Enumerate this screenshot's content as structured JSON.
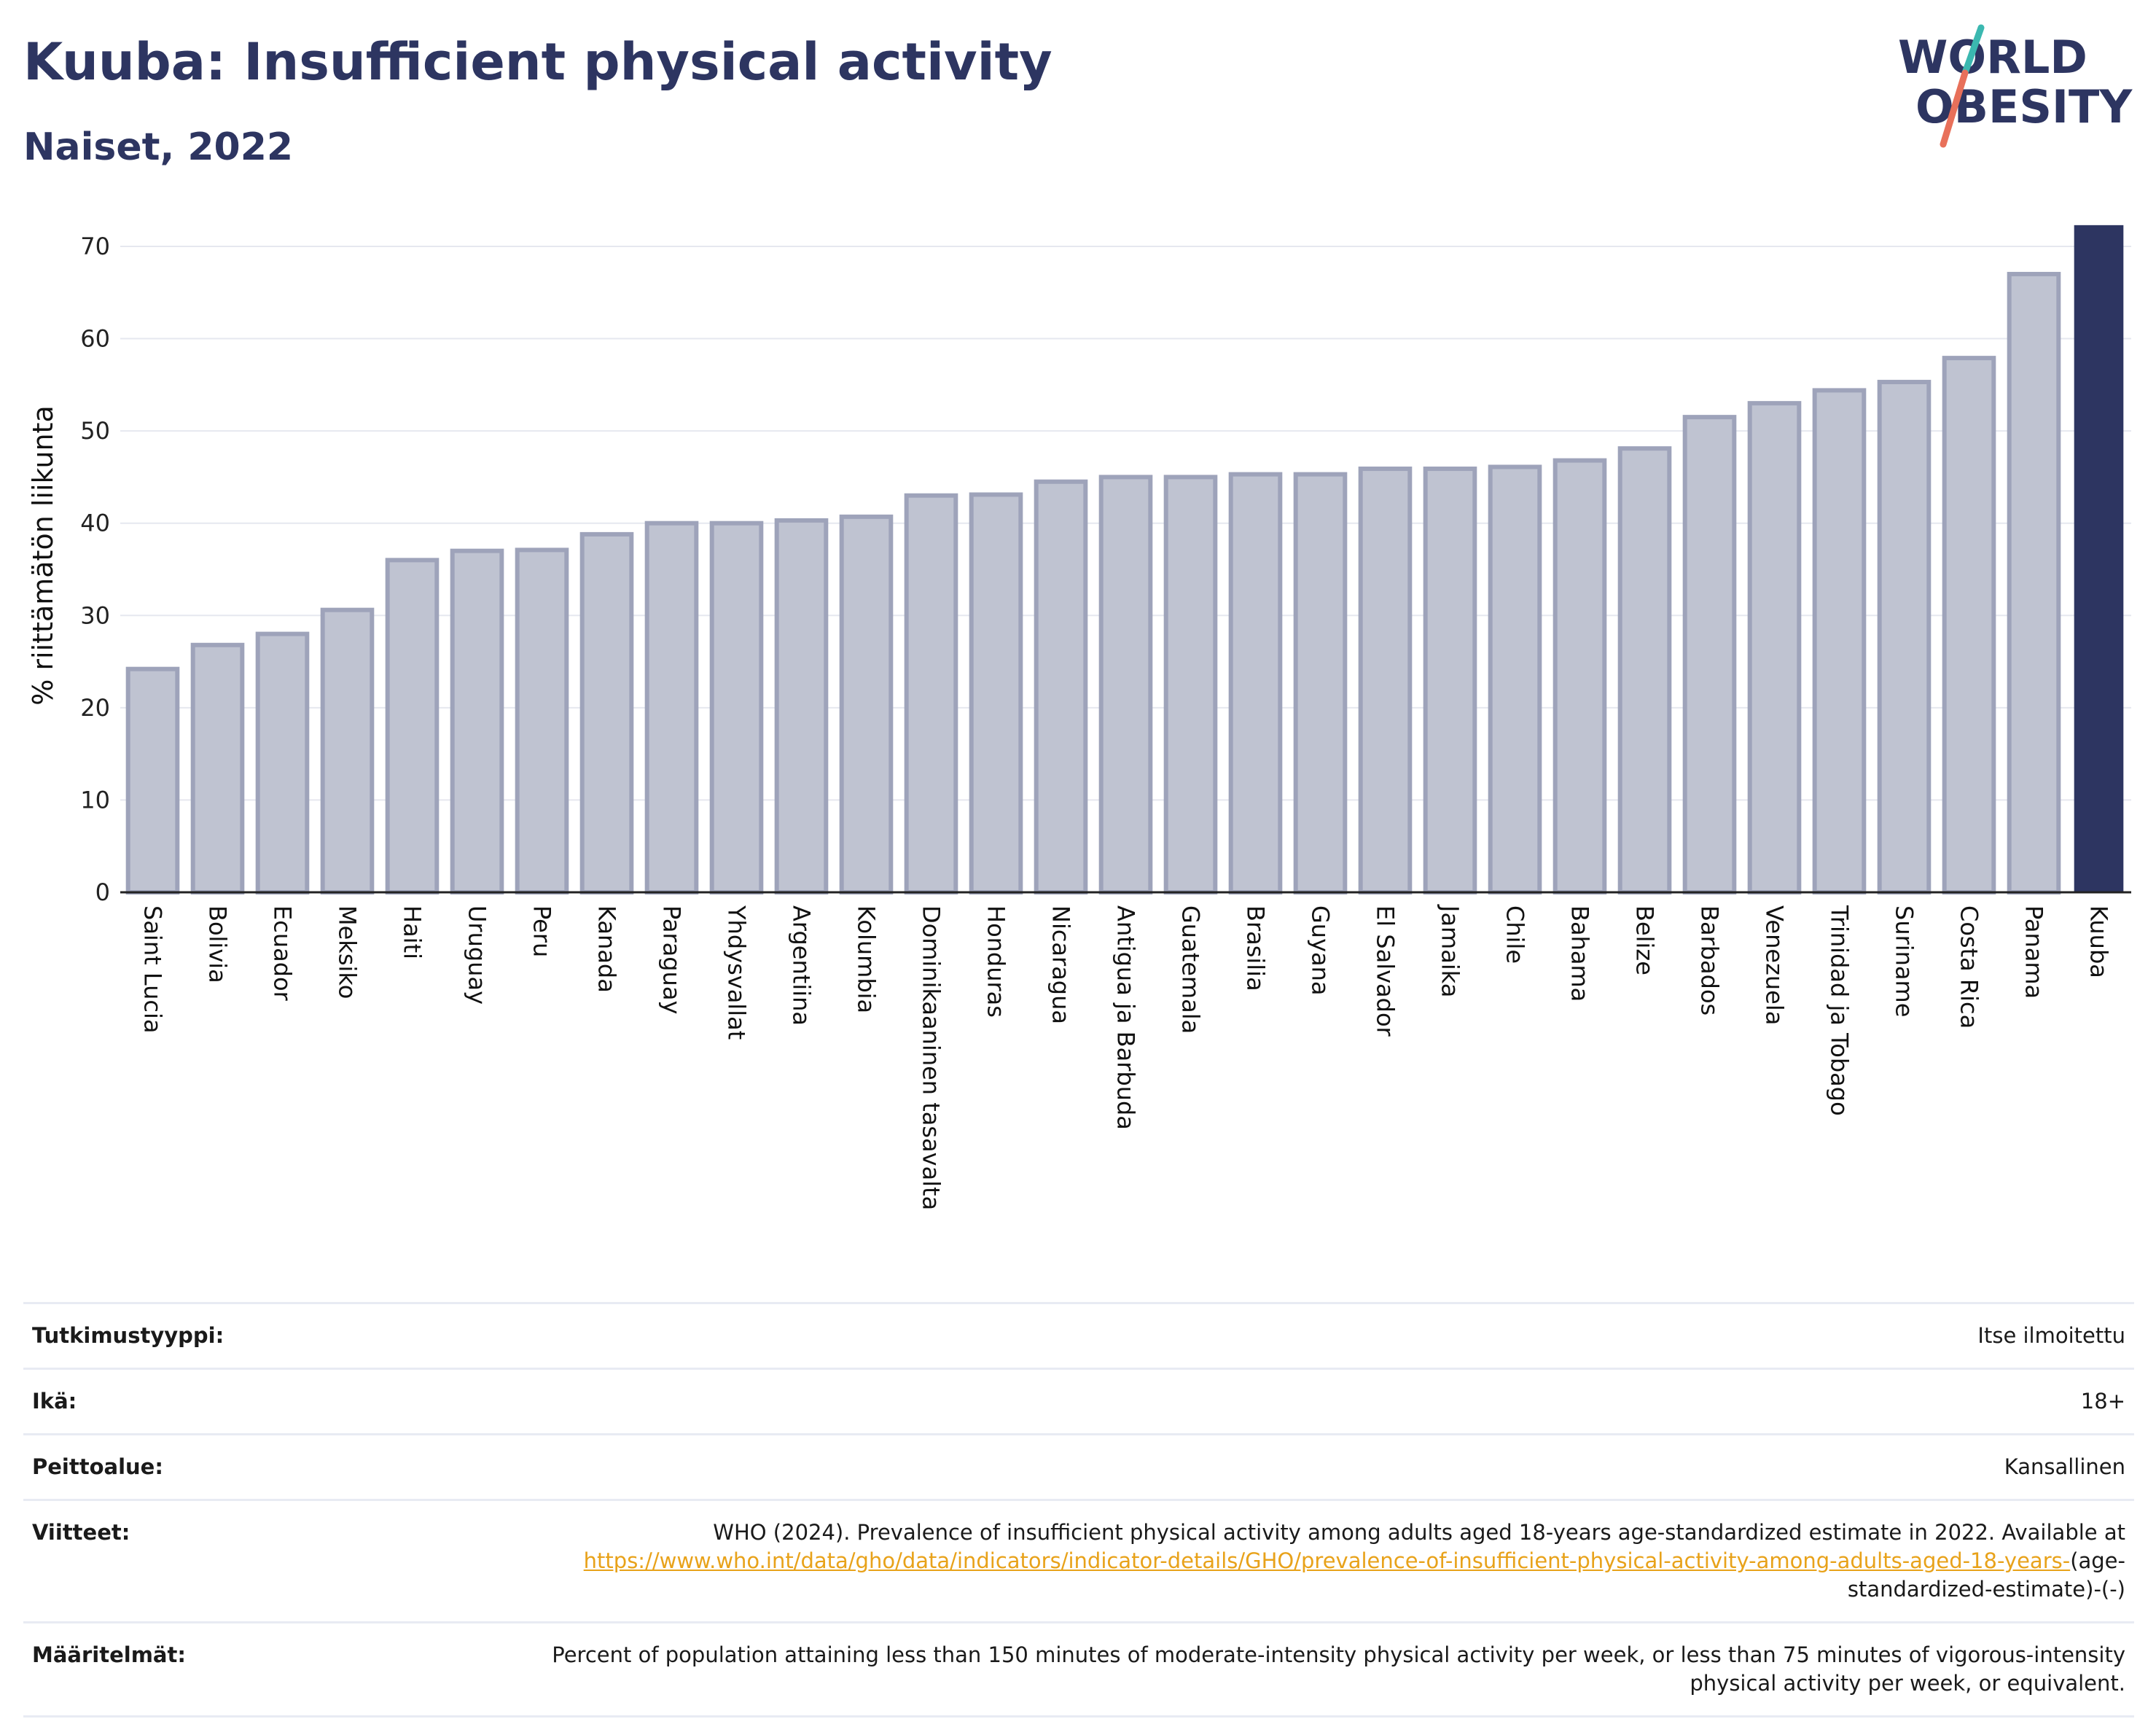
{
  "header": {
    "title": "Kuuba: Insufficient physical activity",
    "subtitle": "Naiset, 2022"
  },
  "logo": {
    "line1": "WORLD",
    "line2": "OBESITY",
    "accent_teal": "#3bb8b0",
    "accent_coral": "#e8705a",
    "text_color": "#2d3561"
  },
  "colors": {
    "bar_default": "#bfc3d1",
    "bar_default_stroke": "#9ea3ba",
    "bar_highlight": "#2d3561",
    "grid": "#e6e8ef"
  },
  "chart_data": {
    "type": "bar",
    "ylabel": "% riittämätön liikunta",
    "xlabel": "",
    "ylim": [
      0,
      73
    ],
    "yticks": [
      0,
      10,
      20,
      30,
      40,
      50,
      60,
      70
    ],
    "grid": true,
    "highlight": "Kuuba",
    "categories": [
      "Saint Lucia",
      "Bolivia",
      "Ecuador",
      "Meksiko",
      "Haiti",
      "Uruguay",
      "Peru",
      "Kanada",
      "Paraguay",
      "Yhdysvallat",
      "Argentiina",
      "Kolumbia",
      "Dominikaaninen tasavalta",
      "Honduras",
      "Nicaragua",
      "Antigua ja Barbuda",
      "Guatemala",
      "Brasilia",
      "Guyana",
      "El Salvador",
      "Jamaika",
      "Chile",
      "Bahama",
      "Belize",
      "Barbados",
      "Venezuela",
      "Trinidad ja Tobago",
      "Suriname",
      "Costa Rica",
      "Panama",
      "Kuuba"
    ],
    "values": [
      24.2,
      26.8,
      28.0,
      30.6,
      36.0,
      37.0,
      37.1,
      38.8,
      40.0,
      40.0,
      40.3,
      40.7,
      43.0,
      43.1,
      44.5,
      45.0,
      45.0,
      45.3,
      45.3,
      45.9,
      45.9,
      46.1,
      46.8,
      48.1,
      51.5,
      53.0,
      54.4,
      55.3,
      57.9,
      67.0,
      72.3
    ]
  },
  "meta": {
    "rows": [
      {
        "label": "Tutkimustyyppi:",
        "value": "Itse ilmoitettu"
      },
      {
        "label": "Ikä:",
        "value": "18+"
      },
      {
        "label": "Peittoalue:",
        "value": "Kansallinen"
      },
      {
        "label": "Viitteet:",
        "value": "WHO (2024). Prevalence of insufficient physical activity among adults aged 18-years age-standardized estimate in 2022. Available at ",
        "link": "https://www.who.int/data/gho/data/indicators/indicator-details/GHO/prevalence-of-insufficient-physical-activity-among-adults-aged-18-years-",
        "suffix": "(age-standardized-estimate)-(-)"
      },
      {
        "label": "Määritelmät:",
        "value": "Percent of population attaining less than 150 minutes of moderate-intensity physical activity per week, or less than 75 minutes of vigorous-intensity physical activity per week, or equivalent."
      }
    ]
  }
}
